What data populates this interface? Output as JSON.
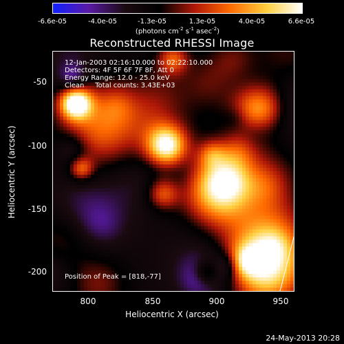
{
  "colorbar": {
    "tick_labels": [
      "-6.6e-05",
      "-4.0e-05",
      "-1.3e-05",
      "1.3e-05",
      "4.0e-05",
      "6.6e-05"
    ],
    "units": "(photons cm",
    "units_exp1": "-2",
    "units_mid": " s",
    "units_exp2": "-1",
    "units_end": " asec",
    "units_exp3": "-2",
    "units_close": ")",
    "colormap": [
      "#1020ff",
      "#5a1aa8",
      "#1a0a10",
      "#000000",
      "#b01808",
      "#ff6a00",
      "#ffd040",
      "#ffffff"
    ]
  },
  "title": "Reconstructed RHESSI Image",
  "info": {
    "line1": "12-Jan-2003 02:16:10.000 to 02:22:10.000",
    "line2": "Detectors: 4F 5F 6F 7F 8F, Att 0",
    "line3": "Energy Range: 12.0 - 25.0 keV",
    "line4": "Clean     Total counts: 3.43E+03",
    "peak": "Position of Peak = [818,-77]"
  },
  "axes": {
    "y_title": "Heliocentric Y (arcsec)",
    "x_title": "Heliocentric X (arcsec)",
    "y_ticks": [
      "-50",
      "-100",
      "-150",
      "-200"
    ],
    "x_ticks": [
      "800",
      "850",
      "900",
      "950"
    ]
  },
  "datestamp": "24-May-2013 20:28"
}
